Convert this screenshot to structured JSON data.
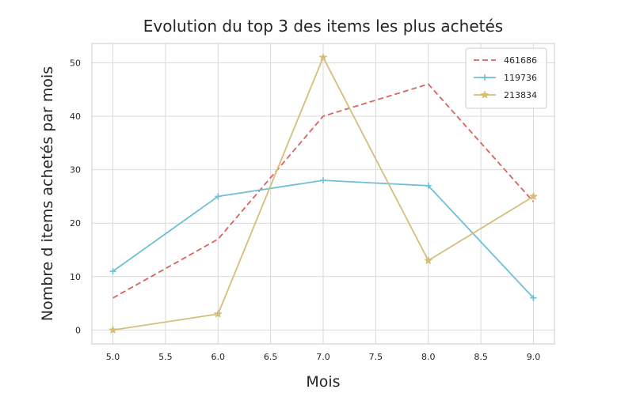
{
  "chart_data": {
    "type": "line",
    "title": "Evolution du top 3 des items les plus achetés",
    "xlabel": "Mois",
    "ylabel": "Nombre d items achetés par mois",
    "xlim": [
      4.8,
      9.2
    ],
    "ylim": [
      -2.6,
      53.6
    ],
    "xticks": [
      5.0,
      5.5,
      6.0,
      6.5,
      7.0,
      7.5,
      8.0,
      8.5,
      9.0
    ],
    "xtick_labels": [
      "5.0",
      "5.5",
      "6.0",
      "6.5",
      "7.0",
      "7.5",
      "8.0",
      "8.5",
      "9.0"
    ],
    "yticks": [
      0,
      10,
      20,
      30,
      40,
      50
    ],
    "ytick_labels": [
      "0",
      "10",
      "20",
      "30",
      "40",
      "50"
    ],
    "grid": true,
    "legend_position": "top-right",
    "x": [
      5,
      6,
      7,
      8,
      9
    ],
    "series": [
      {
        "name": "461686",
        "values": [
          6,
          17,
          40,
          46,
          24
        ],
        "color": "#d9645e",
        "linestyle": "dashed",
        "marker": "none"
      },
      {
        "name": "119736",
        "values": [
          11,
          25,
          28,
          27,
          6
        ],
        "color": "#6fbfd6",
        "linestyle": "solid",
        "marker": "plus"
      },
      {
        "name": "213834",
        "values": [
          0,
          3,
          51,
          13,
          25
        ],
        "color": "#d6bd7a",
        "linestyle": "solid",
        "marker": "star"
      }
    ]
  }
}
